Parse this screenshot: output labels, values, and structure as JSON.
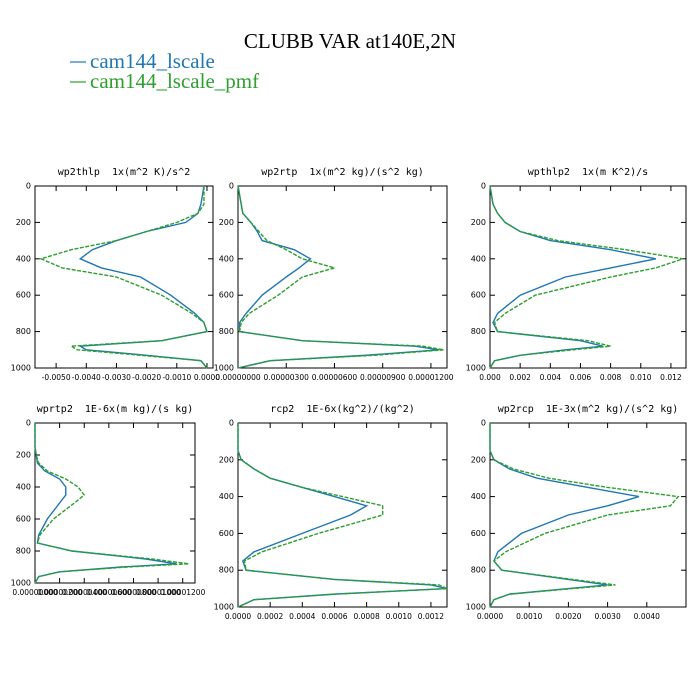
{
  "title": "CLUBB VAR at140E,2N",
  "chart_data": [
    {
      "type": "line",
      "title": "wp2thlp  1x(m^2 K)/s^2",
      "y": [
        0,
        100,
        150,
        200,
        250,
        300,
        350,
        400,
        450,
        500,
        600,
        700,
        750,
        800,
        850,
        880,
        900,
        930,
        960,
        1000
      ],
      "series": [
        {
          "name": "cam144_lscale",
          "color": "#1f77b4",
          "style": "solid",
          "values": [
            -0.0001,
            -0.0002,
            -0.0003,
            -0.0007,
            -0.002,
            -0.003,
            -0.0038,
            -0.0042,
            -0.0035,
            -0.0022,
            -0.0012,
            -0.0004,
            -0.0001,
            0,
            -0.0015,
            -0.0042,
            -0.004,
            -0.002,
            -0.0002,
            0
          ]
        },
        {
          "name": "cam144_lscale_pmf",
          "color": "#2ca02c",
          "style": "dashed",
          "values": [
            -0.0001,
            -0.0001,
            -0.0003,
            -0.001,
            -0.002,
            -0.003,
            -0.0045,
            -0.0055,
            -0.0048,
            -0.003,
            -0.0015,
            -0.0005,
            -0.0001,
            0,
            -0.0015,
            -0.0045,
            -0.0043,
            -0.0022,
            -0.0002,
            0
          ]
        }
      ],
      "xlim": [
        -0.0057,
        0.0002
      ],
      "xticks": [
        {
          "value": -0.005,
          "label": "-0.0050"
        },
        {
          "value": -0.004,
          "label": "-0.0040"
        },
        {
          "value": -0.003,
          "label": "-0.0030"
        },
        {
          "value": -0.002,
          "label": "-0.0020"
        },
        {
          "value": -0.001,
          "label": "-0.0010"
        },
        {
          "value": 0,
          "label": "0.0000"
        }
      ],
      "ylim": [
        1000,
        0
      ],
      "yticks": [
        0,
        200,
        400,
        600,
        800,
        1000
      ]
    },
    {
      "type": "line",
      "title": "wp2rtp  1x(m^2 kg)/(s^2 kg)",
      "y": [
        0,
        100,
        150,
        200,
        250,
        300,
        350,
        400,
        450,
        500,
        600,
        700,
        750,
        800,
        850,
        880,
        900,
        930,
        960,
        1000
      ],
      "series": [
        {
          "name": "cam144_lscale",
          "color": "#1f77b4",
          "style": "solid",
          "values": [
            0,
            2e-07,
            3e-07,
            8e-07,
            1.2e-06,
            1.5e-06,
            3.5e-06,
            4.5e-06,
            3.8e-06,
            3e-06,
            1.5e-06,
            5e-07,
            1e-07,
            1e-07,
            4e-06,
            1.1e-05,
            1.25e-05,
            8e-06,
            2e-06,
            0
          ]
        },
        {
          "name": "cam144_lscale_pmf",
          "color": "#2ca02c",
          "style": "dashed",
          "values": [
            0,
            2e-07,
            3e-07,
            8e-07,
            1.3e-06,
            1.8e-06,
            3e-06,
            4e-06,
            6e-06,
            4e-06,
            2.5e-06,
            7e-07,
            2e-07,
            1e-07,
            4e-06,
            1.15e-05,
            1.28e-05,
            8.5e-06,
            2e-06,
            0
          ]
        }
      ],
      "xlim": [
        0,
        1.3e-05
      ],
      "xticks": [
        {
          "value": 0,
          "label": "0.00000000"
        },
        {
          "value": 3e-06,
          "label": "0.00000300"
        },
        {
          "value": 6e-06,
          "label": "0.00000600"
        },
        {
          "value": 9e-06,
          "label": "0.00000900"
        },
        {
          "value": 1.2e-05,
          "label": "0.00001200"
        }
      ],
      "ylim": [
        1000,
        0
      ],
      "yticks": [
        0,
        200,
        400,
        600,
        800,
        1000
      ]
    },
    {
      "type": "line",
      "title": "wpthlp2  1x(m K^2)/s",
      "y": [
        0,
        100,
        150,
        200,
        250,
        300,
        350,
        400,
        450,
        500,
        600,
        700,
        750,
        800,
        850,
        880,
        900,
        930,
        960,
        1000
      ],
      "series": [
        {
          "name": "cam144_lscale",
          "color": "#1f77b4",
          "style": "solid",
          "values": [
            0,
            0.0002,
            0.0005,
            0.001,
            0.002,
            0.004,
            0.008,
            0.011,
            0.008,
            0.005,
            0.002,
            0.0005,
            0.0002,
            0.0005,
            0.006,
            0.0075,
            0.005,
            0.002,
            0.0003,
            0
          ]
        },
        {
          "name": "cam144_lscale_pmf",
          "color": "#2ca02c",
          "style": "dashed",
          "values": [
            0,
            0.0002,
            0.0005,
            0.001,
            0.002,
            0.0045,
            0.009,
            0.0128,
            0.011,
            0.008,
            0.003,
            0.001,
            0.0003,
            0.0005,
            0.0065,
            0.008,
            0.0055,
            0.002,
            0.0003,
            0
          ]
        }
      ],
      "xlim": [
        0,
        0.013
      ],
      "xticks": [
        {
          "value": 0,
          "label": "0.000"
        },
        {
          "value": 0.002,
          "label": "0.002"
        },
        {
          "value": 0.004,
          "label": "0.004"
        },
        {
          "value": 0.006,
          "label": "0.006"
        },
        {
          "value": 0.008,
          "label": "0.008"
        },
        {
          "value": 0.01,
          "label": "0.010"
        },
        {
          "value": 0.012,
          "label": "0.012"
        }
      ],
      "ylim": [
        1000,
        0
      ],
      "yticks": [
        0,
        200,
        400,
        600,
        800,
        1000
      ]
    },
    {
      "type": "line",
      "title": "wprtp2  1E-6x(m kg)/(s kg)",
      "y": [
        0,
        100,
        150,
        200,
        250,
        300,
        350,
        400,
        450,
        500,
        600,
        700,
        750,
        800,
        850,
        880,
        900,
        930,
        960,
        1000
      ],
      "series": [
        {
          "name": "cam144_lscale",
          "color": "#1f77b4",
          "style": "solid",
          "values": [
            0,
            0,
            0,
            1e-07,
            2e-07,
            8e-07,
            2e-06,
            2.5e-06,
            2.5e-06,
            2e-06,
            1e-06,
            3e-07,
            2e-07,
            3e-06,
            9e-06,
            1.15e-05,
            7e-06,
            2e-06,
            3e-07,
            0
          ]
        },
        {
          "name": "cam144_lscale_pmf",
          "color": "#2ca02c",
          "style": "dashed",
          "values": [
            0,
            0,
            0,
            1e-07,
            3e-07,
            1e-06,
            2.5e-06,
            3.5e-06,
            4e-06,
            3.2e-06,
            1.5e-06,
            4e-07,
            2e-07,
            3e-06,
            9.5e-06,
            1.25e-05,
            7.5e-06,
            2e-06,
            3e-07,
            0
          ]
        }
      ],
      "xlim": [
        0,
        1.3e-05
      ],
      "xticks": [
        {
          "value": 0,
          "label": "0.00000000"
        },
        {
          "value": 2e-06,
          "label": "0.00000200"
        },
        {
          "value": 4e-06,
          "label": "0.00000400"
        },
        {
          "value": 6e-06,
          "label": "0.00000600"
        },
        {
          "value": 8e-06,
          "label": "0.00000800"
        },
        {
          "value": 1e-05,
          "label": "0.00001000"
        },
        {
          "value": 1.2e-05,
          "label": "0.00001200"
        }
      ],
      "ylim": [
        1000,
        0
      ],
      "yticks": [
        0,
        200,
        400,
        600,
        800,
        1000
      ]
    },
    {
      "type": "line",
      "title": "rcp2  1E-6x(kg^2)/(kg^2)",
      "y": [
        0,
        100,
        150,
        200,
        250,
        300,
        350,
        400,
        450,
        500,
        600,
        700,
        750,
        800,
        850,
        880,
        900,
        930,
        960,
        1000
      ],
      "series": [
        {
          "name": "cam144_lscale",
          "color": "#1f77b4",
          "style": "solid",
          "values": [
            0,
            0,
            0,
            2e-05,
            0.0001,
            0.0002,
            0.0004,
            0.0006,
            0.0008,
            0.0007,
            0.0004,
            0.0001,
            3e-05,
            5e-05,
            0.0006,
            0.0012,
            0.0013,
            0.0006,
            0.0001,
            0
          ]
        },
        {
          "name": "cam144_lscale_pmf",
          "color": "#2ca02c",
          "style": "dashed",
          "values": [
            0,
            0,
            0,
            2e-05,
            0.0001,
            0.0002,
            0.0004,
            0.00065,
            0.0009,
            0.0009,
            0.0005,
            0.00015,
            4e-05,
            5e-05,
            0.0006,
            0.00125,
            0.0013,
            0.0006,
            0.0001,
            0
          ]
        }
      ],
      "xlim": [
        0,
        0.0013
      ],
      "xticks": [
        {
          "value": 0,
          "label": "0.0000"
        },
        {
          "value": 0.0002,
          "label": "0.0002"
        },
        {
          "value": 0.0004,
          "label": "0.0004"
        },
        {
          "value": 0.0006,
          "label": "0.0006"
        },
        {
          "value": 0.0008,
          "label": "0.0008"
        },
        {
          "value": 0.001,
          "label": "0.0010"
        },
        {
          "value": 0.0012,
          "label": "0.0012"
        }
      ],
      "ylim": [
        1000,
        0
      ],
      "yticks": [
        0,
        200,
        400,
        600,
        800,
        1000
      ]
    },
    {
      "type": "line",
      "title": "wp2rcp  1E-3x(m^2 kg)/(s^2 kg)",
      "y": [
        0,
        100,
        150,
        200,
        250,
        300,
        350,
        400,
        450,
        500,
        600,
        700,
        750,
        800,
        850,
        880,
        900,
        930,
        960,
        1000
      ],
      "series": [
        {
          "name": "cam144_lscale",
          "color": "#1f77b4",
          "style": "solid",
          "values": [
            0,
            0,
            0,
            0.0001,
            0.0005,
            0.0012,
            0.0025,
            0.0038,
            0.003,
            0.002,
            0.0008,
            0.0002,
            0.0001,
            0.0003,
            0.002,
            0.003,
            0.002,
            0.0005,
            0.0001,
            0
          ]
        },
        {
          "name": "cam144_lscale_pmf",
          "color": "#2ca02c",
          "style": "dashed",
          "values": [
            0,
            0,
            0,
            0.0001,
            0.0006,
            0.0015,
            0.003,
            0.0048,
            0.0046,
            0.003,
            0.0014,
            0.0004,
            0.0001,
            0.0003,
            0.0021,
            0.0032,
            0.0021,
            0.0005,
            0.0001,
            0
          ]
        }
      ],
      "xlim": [
        0,
        0.005
      ],
      "xticks": [
        {
          "value": 0,
          "label": "0.0000"
        },
        {
          "value": 0.001,
          "label": "0.0010"
        },
        {
          "value": 0.002,
          "label": "0.0020"
        },
        {
          "value": 0.003,
          "label": "0.0030"
        },
        {
          "value": 0.004,
          "label": "0.0040"
        }
      ],
      "ylim": [
        1000,
        0
      ],
      "yticks": [
        0,
        200,
        400,
        600,
        800,
        1000
      ]
    }
  ]
}
